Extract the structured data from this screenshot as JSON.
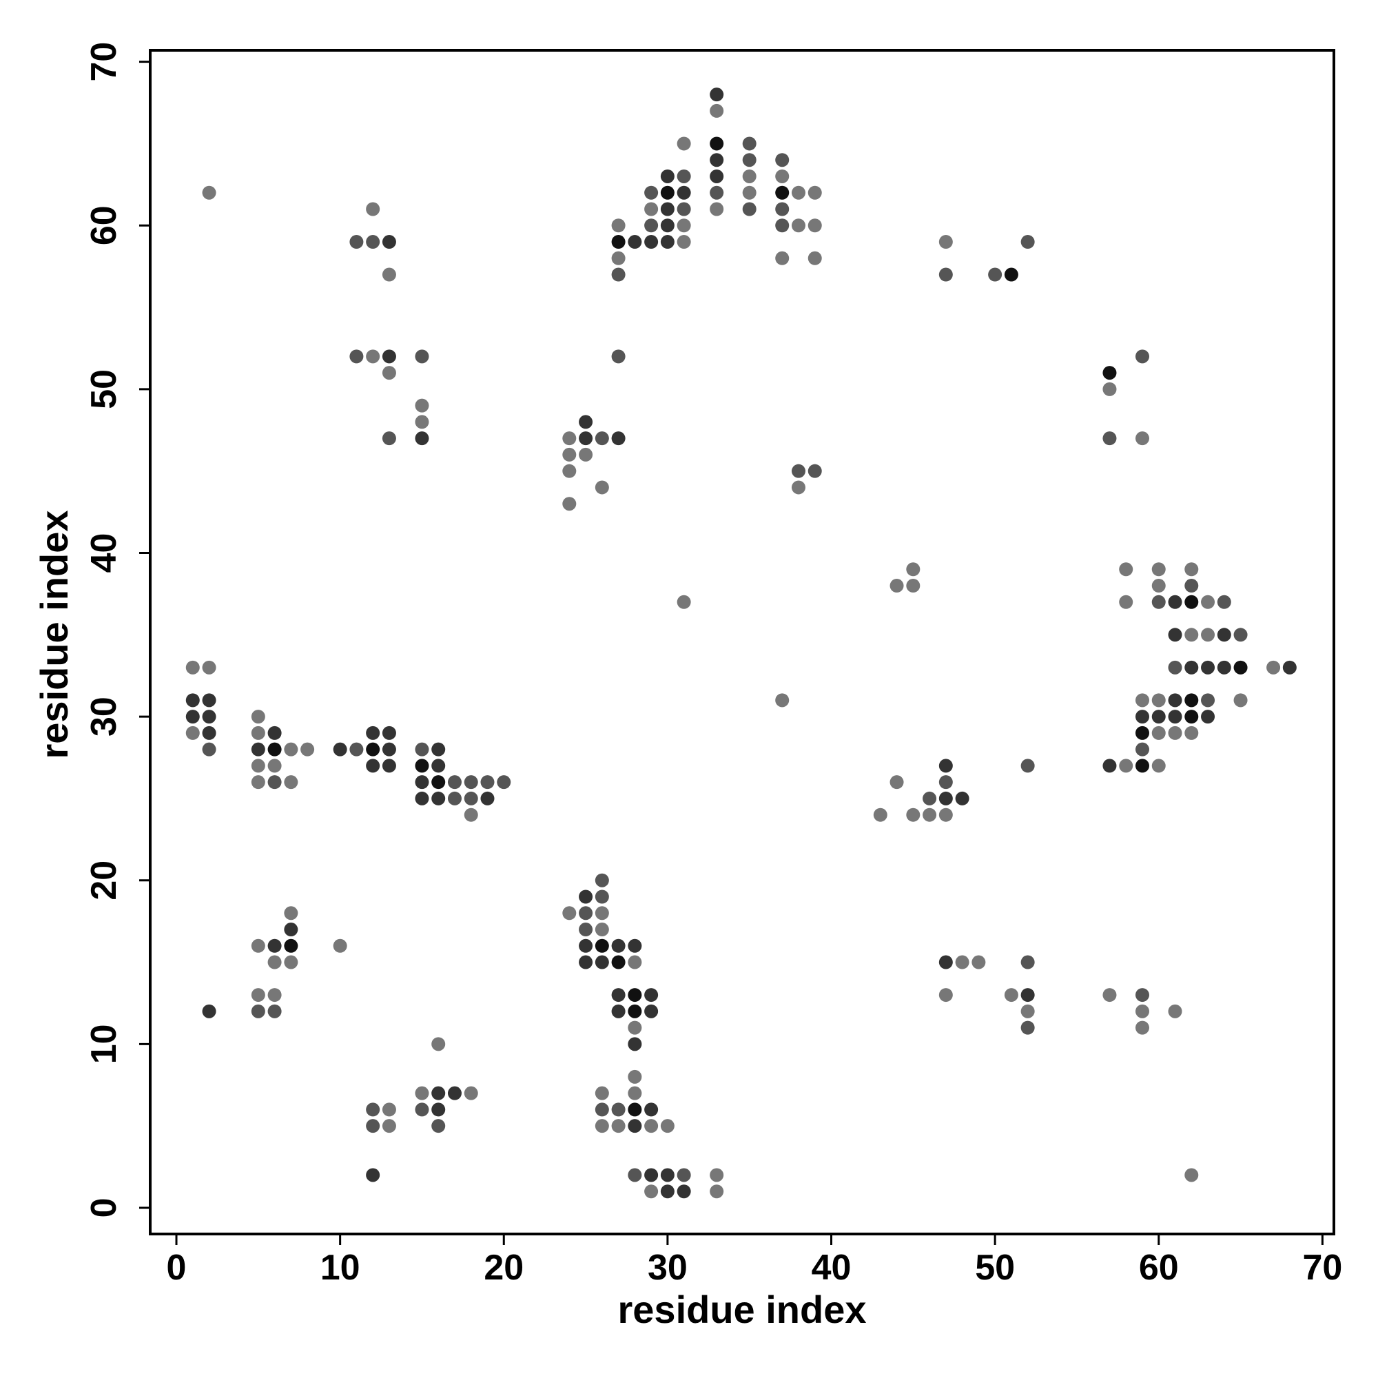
{
  "chart_data": {
    "type": "scatter",
    "xlabel": "residue index",
    "ylabel": "residue index",
    "xlim": [
      -1.6,
      70.7
    ],
    "ylim": [
      -1.6,
      70.7
    ],
    "xticks": [
      0,
      10,
      20,
      30,
      40,
      50,
      60,
      70
    ],
    "yticks": [
      0,
      10,
      20,
      30,
      40,
      50,
      60,
      70
    ],
    "x": [
      2,
      12,
      11,
      12,
      13,
      13,
      11,
      12,
      13,
      15,
      13,
      15,
      15,
      15,
      13,
      27,
      27,
      28,
      27,
      27,
      29,
      29,
      29,
      29,
      30,
      30,
      30,
      30,
      30,
      31,
      31,
      31,
      31,
      31,
      31,
      33,
      33,
      33,
      33,
      33,
      33,
      33,
      35,
      35,
      35,
      35,
      35,
      37,
      37,
      37,
      37,
      37,
      37,
      38,
      38,
      39,
      39,
      39,
      47,
      47,
      50,
      51,
      52,
      27,
      25,
      24,
      25,
      26,
      27,
      24,
      25,
      24,
      26,
      24,
      38,
      39,
      38,
      57,
      57,
      57,
      59,
      59,
      31,
      44,
      45,
      45,
      58,
      58,
      60,
      60,
      60,
      61,
      62,
      62,
      62,
      63,
      64,
      61,
      62,
      63,
      64,
      65,
      61,
      62,
      63,
      64,
      65,
      67,
      68,
      59,
      60,
      61,
      62,
      63,
      65,
      59,
      60,
      61,
      62,
      63,
      59,
      60,
      61,
      62,
      59,
      57,
      58,
      59,
      60,
      37,
      52,
      44,
      43,
      45,
      46,
      46,
      47,
      47,
      47,
      47,
      48,
      1,
      2,
      1,
      2,
      1,
      2,
      1,
      2,
      2,
      5,
      5,
      6,
      5,
      6,
      7,
      8,
      5,
      6,
      5,
      6,
      7,
      10,
      11,
      12,
      13,
      12,
      13,
      12,
      13,
      15,
      16,
      15,
      16,
      15,
      16,
      17,
      18,
      19,
      20,
      15,
      16,
      17,
      18,
      19,
      18,
      7,
      7,
      5,
      6,
      7,
      6,
      7,
      10,
      5,
      6,
      5,
      6,
      2,
      26,
      25,
      26,
      24,
      25,
      26,
      25,
      26,
      25,
      26,
      27,
      28,
      25,
      26,
      27,
      28,
      27,
      28,
      29,
      27,
      28,
      29,
      28,
      28,
      47,
      48,
      49,
      47,
      51,
      52,
      52,
      52,
      52,
      57,
      59,
      59,
      59,
      61,
      16,
      15,
      16,
      17,
      18,
      15,
      16,
      16,
      12,
      13,
      12,
      13,
      12,
      28,
      26,
      28,
      26,
      27,
      28,
      29,
      26,
      27,
      28,
      29,
      30,
      28,
      29,
      30,
      31,
      33,
      29,
      30,
      31,
      33,
      62
    ],
    "values": [
      62,
      61,
      59,
      59,
      59,
      57,
      52,
      52,
      52,
      52,
      51,
      49,
      48,
      47,
      47,
      60,
      59,
      59,
      58,
      57,
      62,
      61,
      60,
      59,
      63,
      62,
      61,
      60,
      59,
      65,
      63,
      62,
      61,
      60,
      59,
      68,
      67,
      65,
      64,
      63,
      62,
      61,
      65,
      64,
      63,
      62,
      61,
      64,
      63,
      62,
      61,
      60,
      58,
      62,
      60,
      62,
      60,
      58,
      59,
      57,
      57,
      57,
      59,
      52,
      48,
      47,
      47,
      47,
      47,
      46,
      46,
      45,
      44,
      43,
      45,
      45,
      44,
      51,
      50,
      47,
      52,
      47,
      37,
      38,
      39,
      38,
      39,
      37,
      39,
      38,
      37,
      37,
      39,
      38,
      37,
      37,
      37,
      35,
      35,
      35,
      35,
      35,
      33,
      33,
      33,
      33,
      33,
      33,
      33,
      31,
      31,
      31,
      31,
      31,
      31,
      30,
      30,
      30,
      30,
      30,
      29,
      29,
      29,
      29,
      28,
      27,
      27,
      27,
      27,
      31,
      27,
      26,
      24,
      24,
      25,
      24,
      27,
      26,
      25,
      24,
      25,
      33,
      33,
      31,
      31,
      30,
      30,
      29,
      29,
      28,
      30,
      29,
      29,
      28,
      28,
      28,
      28,
      27,
      27,
      26,
      26,
      26,
      28,
      28,
      29,
      29,
      28,
      28,
      27,
      27,
      28,
      28,
      27,
      27,
      26,
      26,
      26,
      26,
      26,
      26,
      25,
      25,
      25,
      25,
      25,
      24,
      18,
      17,
      16,
      16,
      16,
      15,
      15,
      16,
      13,
      13,
      12,
      12,
      12,
      20,
      19,
      19,
      18,
      18,
      18,
      17,
      17,
      16,
      16,
      16,
      16,
      15,
      15,
      15,
      15,
      13,
      13,
      13,
      12,
      12,
      12,
      11,
      10,
      15,
      15,
      15,
      13,
      13,
      15,
      13,
      12,
      11,
      13,
      13,
      12,
      11,
      12,
      10,
      7,
      7,
      7,
      7,
      6,
      6,
      5,
      6,
      6,
      5,
      5,
      2,
      8,
      7,
      7,
      6,
      6,
      6,
      6,
      5,
      5,
      5,
      5,
      5,
      2,
      2,
      2,
      2,
      2,
      1,
      1,
      1,
      1,
      2
    ],
    "colors": [
      "#777",
      "#777",
      "#555",
      "#555",
      "#333",
      "#777",
      "#555",
      "#777",
      "#333",
      "#555",
      "#777",
      "#777",
      "#777",
      "#333",
      "#555",
      "#777",
      "#111",
      "#333",
      "#777",
      "#555",
      "#555",
      "#777",
      "#555",
      "#333",
      "#333",
      "#111",
      "#333",
      "#333",
      "#333",
      "#777",
      "#555",
      "#333",
      "#555",
      "#777",
      "#777",
      "#333",
      "#777",
      "#111",
      "#333",
      "#333",
      "#555",
      "#777",
      "#555",
      "#555",
      "#777",
      "#777",
      "#555",
      "#555",
      "#777",
      "#111",
      "#555",
      "#555",
      "#777",
      "#777",
      "#777",
      "#777",
      "#777",
      "#777",
      "#777",
      "#555",
      "#555",
      "#111",
      "#555",
      "#555",
      "#333",
      "#777",
      "#333",
      "#555",
      "#333",
      "#777",
      "#777",
      "#777",
      "#777",
      "#777",
      "#555",
      "#555",
      "#777",
      "#111",
      "#777",
      "#555",
      "#555",
      "#777",
      "#777",
      "#777",
      "#777",
      "#777",
      "#777",
      "#777",
      "#777",
      "#777",
      "#555",
      "#333",
      "#777",
      "#555",
      "#111",
      "#777",
      "#555",
      "#333",
      "#777",
      "#777",
      "#333",
      "#555",
      "#555",
      "#333",
      "#333",
      "#333",
      "#111",
      "#777",
      "#333",
      "#777",
      "#777",
      "#333",
      "#111",
      "#555",
      "#777",
      "#333",
      "#333",
      "#333",
      "#111",
      "#333",
      "#111",
      "#777",
      "#777",
      "#777",
      "#555",
      "#333",
      "#777",
      "#111",
      "#777",
      "#777",
      "#555",
      "#777",
      "#777",
      "#777",
      "#555",
      "#777",
      "#333",
      "#555",
      "#333",
      "#777",
      "#333",
      "#777",
      "#777",
      "#333",
      "#333",
      "#333",
      "#333",
      "#777",
      "#333",
      "#555",
      "#777",
      "#777",
      "#333",
      "#333",
      "#111",
      "#777",
      "#777",
      "#777",
      "#777",
      "#777",
      "#555",
      "#777",
      "#333",
      "#555",
      "#333",
      "#333",
      "#111",
      "#333",
      "#333",
      "#333",
      "#555",
      "#333",
      "#111",
      "#333",
      "#333",
      "#111",
      "#555",
      "#555",
      "#555",
      "#555",
      "#333",
      "#333",
      "#555",
      "#555",
      "#333",
      "#777",
      "#777",
      "#333",
      "#777",
      "#333",
      "#111",
      "#777",
      "#777",
      "#777",
      "#777",
      "#777",
      "#555",
      "#555",
      "#333",
      "#555",
      "#333",
      "#555",
      "#777",
      "#555",
      "#777",
      "#555",
      "#777",
      "#333",
      "#111",
      "#333",
      "#333",
      "#333",
      "#333",
      "#111",
      "#777",
      "#333",
      "#111",
      "#333",
      "#333",
      "#111",
      "#333",
      "#777",
      "#333",
      "#333",
      "#777",
      "#777",
      "#777",
      "#777",
      "#555",
      "#333",
      "#777",
      "#555",
      "#777",
      "#555",
      "#777",
      "#777",
      "#777",
      "#777",
      "#777",
      "#333",
      "#333",
      "#777",
      "#555",
      "#333",
      "#555",
      "#555",
      "#777",
      "#555",
      "#777",
      "#333",
      "#777",
      "#777",
      "#777",
      "#555",
      "#555",
      "#111",
      "#333",
      "#777",
      "#777",
      "#333",
      "#777",
      "#777",
      "#555",
      "#333",
      "#333",
      "#555",
      "#777",
      "#777",
      "#333",
      "#333",
      "#777",
      "#777"
    ]
  }
}
